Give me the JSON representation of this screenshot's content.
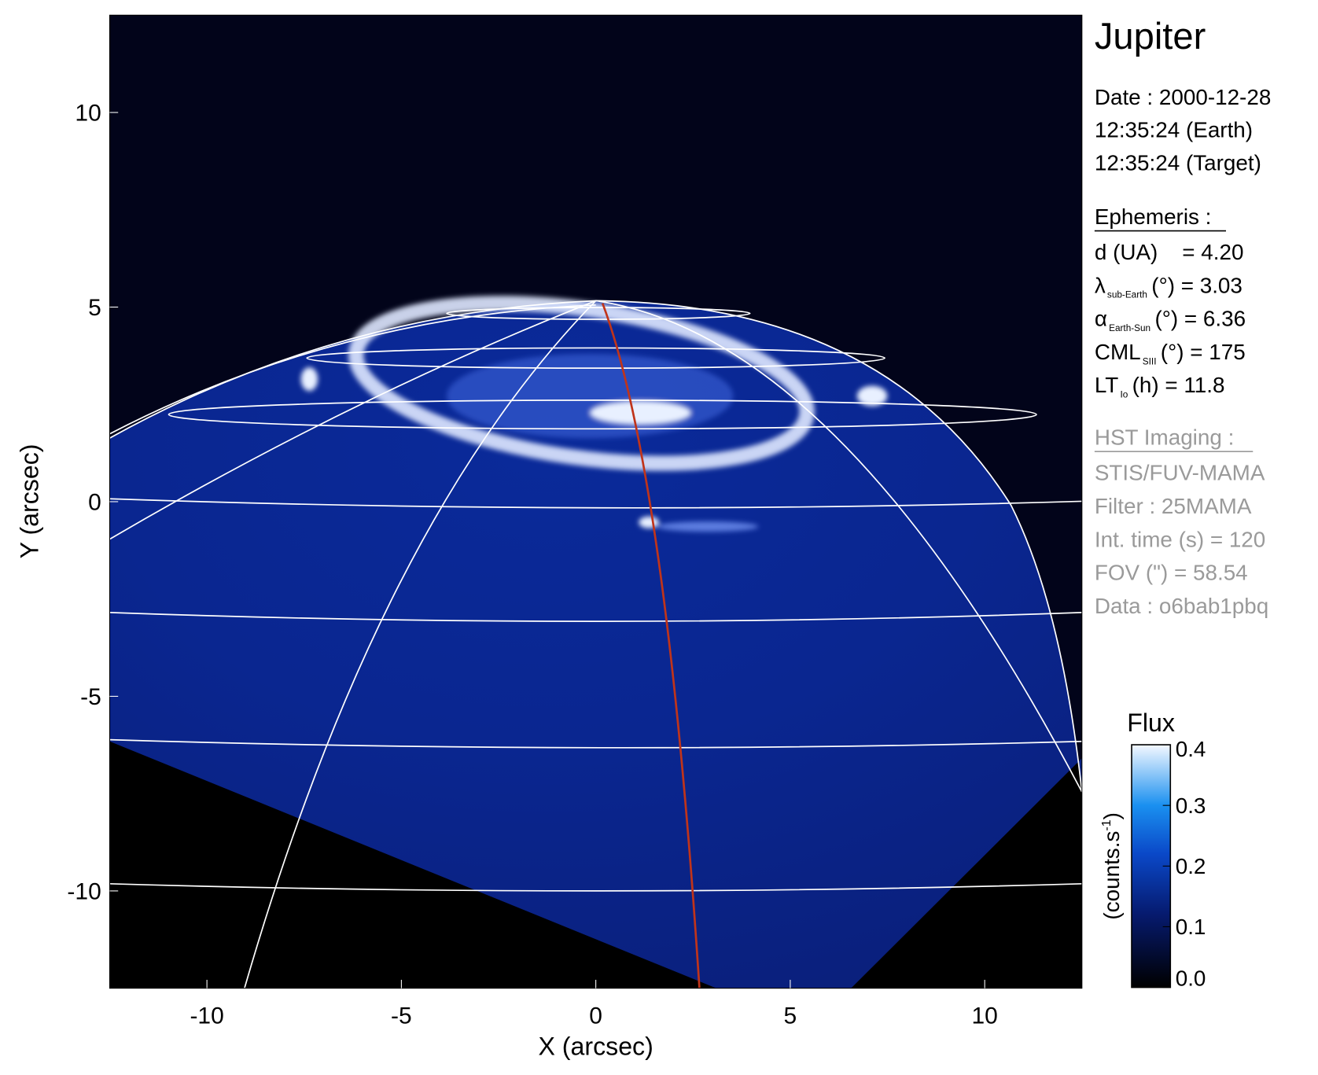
{
  "chart_data": {
    "type": "image",
    "x_label": "X (arcsec)",
    "y_label": "Y (arcsec)",
    "xlim": [
      -12.5,
      12.5
    ],
    "ylim": [
      -12.5,
      12.5
    ],
    "xticks": [
      -10,
      -5,
      0,
      5,
      10
    ],
    "yticks": [
      -10,
      -5,
      0,
      5,
      10
    ],
    "colorbar": {
      "title": "Flux",
      "unit": "(counts.s",
      "unit_sup": "-1",
      "unit_end": ")",
      "lim": [
        0,
        0.4
      ],
      "ticks": [
        {
          "value": 0,
          "label": "0.0"
        },
        0.1,
        0.2,
        0.3,
        0.4
      ]
    },
    "annotations": {
      "title": "Jupiter",
      "date": [
        "Date : 2000-12-28",
        "12:35:24 (Earth)",
        "12:35:24 (Target)"
      ],
      "ephemeris_heading": "Ephemeris :",
      "ephemeris": [
        {
          "text": "d (UA)    = 4.20"
        },
        {
          "sym": "λ",
          "sub": "sub-Earth",
          "text": "(°) = 3.03"
        },
        {
          "sym": "α",
          "sub": "Earth-Sun",
          "text": "(°) = 6.36"
        },
        {
          "sym": "CML",
          "sub": "SIII",
          "text": "(°) = 175"
        },
        {
          "sym": "LT",
          "sub": "Io",
          "text": "(h) = 11.8"
        }
      ],
      "hst_heading": "HST Imaging :",
      "hst": [
        "STIS/FUV-MAMA",
        "Filter : 25MAMA",
        "Int. time (s) = 120",
        "FOV (\") = 58.54",
        "Data : o6bab1pbq"
      ]
    }
  }
}
